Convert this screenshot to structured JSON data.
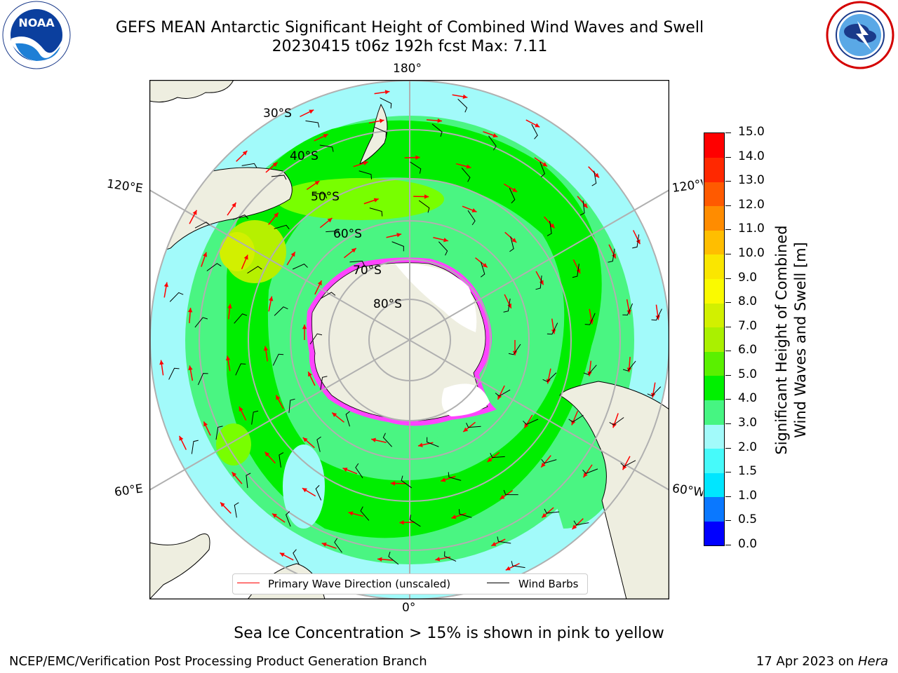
{
  "title": {
    "line1": "GEFS MEAN Antarctic Significant Height of Combined Wind Waves and Swell",
    "line2": "20230415 t06z 192h fcst   Max: 7.11"
  },
  "logos": {
    "left": {
      "text": "NOAA",
      "ring_text": "NATIONAL OCEANIC AND ATMOSPHERIC ADMINISTRATION · U.S. DEPARTMENT OF COMMERCE"
    },
    "right": {
      "ring_text": "NATIONAL WEATHER SERVICE"
    }
  },
  "map": {
    "projection": "south-polar stereographic",
    "lon_labels": {
      "top": "180°",
      "bottom": "0°",
      "left_upper": "120°E",
      "left_lower": "60°E",
      "right_upper": "120°W",
      "right_lower": "60°W"
    },
    "lat_labels": [
      "30°S",
      "40°S",
      "50°S",
      "60°S",
      "70°S",
      "80°S"
    ],
    "colors": {
      "ocean_low": "#a2fafa",
      "ocean_mid": "#4af582",
      "ocean_high": "#00ee00",
      "ocean_peak": "#78ff00",
      "land": "#eeeee0",
      "ice_edge": "#ff44ff"
    }
  },
  "legend": {
    "items": [
      {
        "label": "Primary Wave Direction (unscaled)",
        "color": "#ff0000"
      },
      {
        "label": "Wind Barbs",
        "color": "#000000"
      }
    ]
  },
  "colorbar": {
    "title_line1": "Significant Height of Combined",
    "title_line2": "Wind Waves and Swell [m]",
    "ticks": [
      "0.0",
      "0.5",
      "1.0",
      "1.5",
      "2.0",
      "3.0",
      "4.0",
      "5.0",
      "6.0",
      "7.0",
      "8.0",
      "9.0",
      "10.0",
      "11.0",
      "12.0",
      "13.0",
      "14.0",
      "15.0"
    ],
    "colors": [
      "#0000ff",
      "#0a78ff",
      "#00e6ff",
      "#46fafa",
      "#a2fafa",
      "#46f582",
      "#00f000",
      "#5af000",
      "#aaf000",
      "#d2f000",
      "#fafa00",
      "#fae600",
      "#ffbe00",
      "#ff8c00",
      "#ff5a00",
      "#ff2800",
      "#ff0000"
    ]
  },
  "note": "Sea Ice Concentration > 15% is shown in pink to yellow",
  "footer": {
    "left": "NCEP/EMC/Verification Post Processing Product Generation Branch",
    "right_prefix": "17 Apr 2023 on ",
    "right_host": "Hera"
  }
}
